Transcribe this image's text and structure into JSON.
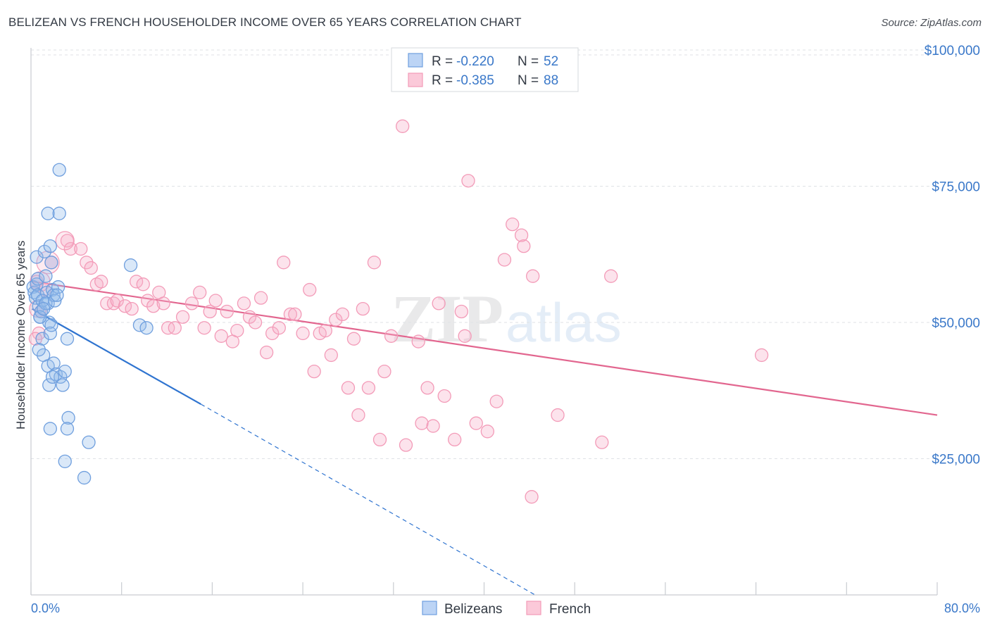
{
  "header": {
    "title": "BELIZEAN VS FRENCH HOUSEHOLDER INCOME OVER 65 YEARS CORRELATION CHART",
    "source": "Source: ZipAtlas.com"
  },
  "watermark": {
    "zip": "ZIP",
    "atlas": "atlas"
  },
  "chart_data": {
    "type": "scatter",
    "xlabel": "",
    "ylabel": "Householder Income Over 65 years",
    "xlim": [
      0,
      80
    ],
    "ylim": [
      0,
      104000
    ],
    "x_tick_labels": {
      "min": "0.0%",
      "max": "80.0%"
    },
    "y_ticks": [
      {
        "value": 25000,
        "label": "$25,000"
      },
      {
        "value": 50000,
        "label": "$50,000"
      },
      {
        "value": 75000,
        "label": "$75,000"
      },
      {
        "value": 100000,
        "label": "$100,000"
      }
    ],
    "grid": true,
    "legend_top": {
      "position": "top-center",
      "rows": [
        {
          "r_label": "R = ",
          "r_value": "-0.220",
          "n_label": "N = ",
          "n_value": "52"
        },
        {
          "r_label": "R = ",
          "r_value": "-0.385",
          "n_label": "N = ",
          "n_value": "88"
        }
      ]
    },
    "series": [
      {
        "name": "Belizeans",
        "color": "#6f9fde",
        "line_color": "#2f74d0",
        "trend": {
          "x0": 0.1,
          "y0": 52500,
          "x1": 15,
          "y1": 35000,
          "dash_to_x": 44.5,
          "dash_to_y": 0
        },
        "points": [
          [
            0.2,
            56500
          ],
          [
            0.3,
            55500
          ],
          [
            0.4,
            54500
          ],
          [
            0.5,
            57000
          ],
          [
            0.6,
            55000
          ],
          [
            0.7,
            53000
          ],
          [
            0.8,
            51000
          ],
          [
            0.5,
            62000
          ],
          [
            0.6,
            58000
          ],
          [
            0.9,
            52000
          ],
          [
            1.0,
            47000
          ],
          [
            1.1,
            44000
          ],
          [
            1.2,
            63000
          ],
          [
            1.3,
            58500
          ],
          [
            1.4,
            55500
          ],
          [
            1.5,
            53500
          ],
          [
            1.6,
            50000
          ],
          [
            1.7,
            64000
          ],
          [
            1.8,
            61000
          ],
          [
            1.9,
            56000
          ],
          [
            2.0,
            55000
          ],
          [
            1.5,
            42000
          ],
          [
            1.6,
            38500
          ],
          [
            1.7,
            48000
          ],
          [
            1.8,
            49500
          ],
          [
            2.0,
            42500
          ],
          [
            2.2,
            40500
          ],
          [
            2.4,
            56500
          ],
          [
            1.5,
            70000
          ],
          [
            2.5,
            78000
          ],
          [
            2.5,
            70000
          ],
          [
            2.6,
            40000
          ],
          [
            2.8,
            38500
          ],
          [
            3.0,
            41000
          ],
          [
            3.2,
            47000
          ],
          [
            3.3,
            32500
          ],
          [
            3.2,
            30500
          ],
          [
            1.7,
            30500
          ],
          [
            3.0,
            24500
          ],
          [
            4.7,
            21500
          ],
          [
            5.1,
            28000
          ],
          [
            8.8,
            60500
          ],
          [
            9.6,
            49500
          ],
          [
            10.2,
            49000
          ],
          [
            1.0,
            54000
          ],
          [
            1.3,
            53500
          ],
          [
            0.8,
            51000
          ],
          [
            2.1,
            54000
          ],
          [
            2.3,
            55000
          ],
          [
            1.9,
            40000
          ],
          [
            0.7,
            45000
          ],
          [
            1.1,
            52500
          ]
        ],
        "point_sizes": [
          9
        ]
      },
      {
        "name": "French",
        "color": "#f39bb8",
        "line_color": "#e2668f",
        "trend": {
          "x0": 0.1,
          "y0": 57500,
          "x1": 80,
          "y1": 33000
        },
        "points": [
          [
            0.5,
            57500
          ],
          [
            0.7,
            48000
          ],
          [
            0.9,
            52000
          ],
          [
            1.2,
            56000
          ],
          [
            1.8,
            61000
          ],
          [
            3.2,
            65000
          ],
          [
            3.5,
            63500
          ],
          [
            4.4,
            63500
          ],
          [
            4.9,
            61000
          ],
          [
            5.3,
            60000
          ],
          [
            5.8,
            57000
          ],
          [
            6.2,
            57500
          ],
          [
            6.7,
            53500
          ],
          [
            7.3,
            53500
          ],
          [
            7.6,
            54000
          ],
          [
            8.3,
            53000
          ],
          [
            8.9,
            52500
          ],
          [
            9.3,
            57500
          ],
          [
            9.9,
            57000
          ],
          [
            10.3,
            54000
          ],
          [
            10.8,
            53000
          ],
          [
            11.3,
            55500
          ],
          [
            11.7,
            53500
          ],
          [
            12.1,
            49000
          ],
          [
            12.7,
            49000
          ],
          [
            13.4,
            51000
          ],
          [
            14.2,
            53500
          ],
          [
            14.9,
            55500
          ],
          [
            15.3,
            49000
          ],
          [
            15.8,
            52000
          ],
          [
            16.3,
            54000
          ],
          [
            16.8,
            47500
          ],
          [
            17.3,
            52000
          ],
          [
            17.8,
            46500
          ],
          [
            18.2,
            48500
          ],
          [
            18.8,
            53500
          ],
          [
            19.3,
            51000
          ],
          [
            19.8,
            50000
          ],
          [
            20.3,
            54500
          ],
          [
            20.8,
            44500
          ],
          [
            21.3,
            48000
          ],
          [
            21.9,
            49000
          ],
          [
            22.3,
            61000
          ],
          [
            22.9,
            51500
          ],
          [
            23.3,
            51500
          ],
          [
            24.0,
            48000
          ],
          [
            24.6,
            56000
          ],
          [
            25.0,
            41000
          ],
          [
            25.5,
            48000
          ],
          [
            26.0,
            48500
          ],
          [
            26.5,
            44000
          ],
          [
            26.9,
            50500
          ],
          [
            27.5,
            51500
          ],
          [
            28.0,
            38000
          ],
          [
            28.5,
            47000
          ],
          [
            28.9,
            33000
          ],
          [
            29.3,
            52500
          ],
          [
            29.8,
            38000
          ],
          [
            30.3,
            61000
          ],
          [
            30.8,
            28500
          ],
          [
            31.2,
            41000
          ],
          [
            31.8,
            47500
          ],
          [
            32.8,
            86000
          ],
          [
            33.1,
            27500
          ],
          [
            34.2,
            46500
          ],
          [
            34.5,
            31500
          ],
          [
            35.0,
            38000
          ],
          [
            35.5,
            31000
          ],
          [
            36.0,
            53500
          ],
          [
            36.5,
            36500
          ],
          [
            37.4,
            28500
          ],
          [
            38.0,
            52000
          ],
          [
            38.6,
            76000
          ],
          [
            38.3,
            47500
          ],
          [
            39.3,
            31500
          ],
          [
            40.3,
            30000
          ],
          [
            41.1,
            35500
          ],
          [
            41.8,
            61500
          ],
          [
            42.5,
            68000
          ],
          [
            43.3,
            66000
          ],
          [
            43.5,
            64000
          ],
          [
            44.3,
            58500
          ],
          [
            44.2,
            18000
          ],
          [
            46.5,
            33000
          ],
          [
            50.4,
            28000
          ],
          [
            51.2,
            58500
          ],
          [
            64.5,
            44000
          ],
          [
            0.4,
            47000
          ]
        ],
        "point_sizes": [
          9
        ]
      }
    ]
  }
}
